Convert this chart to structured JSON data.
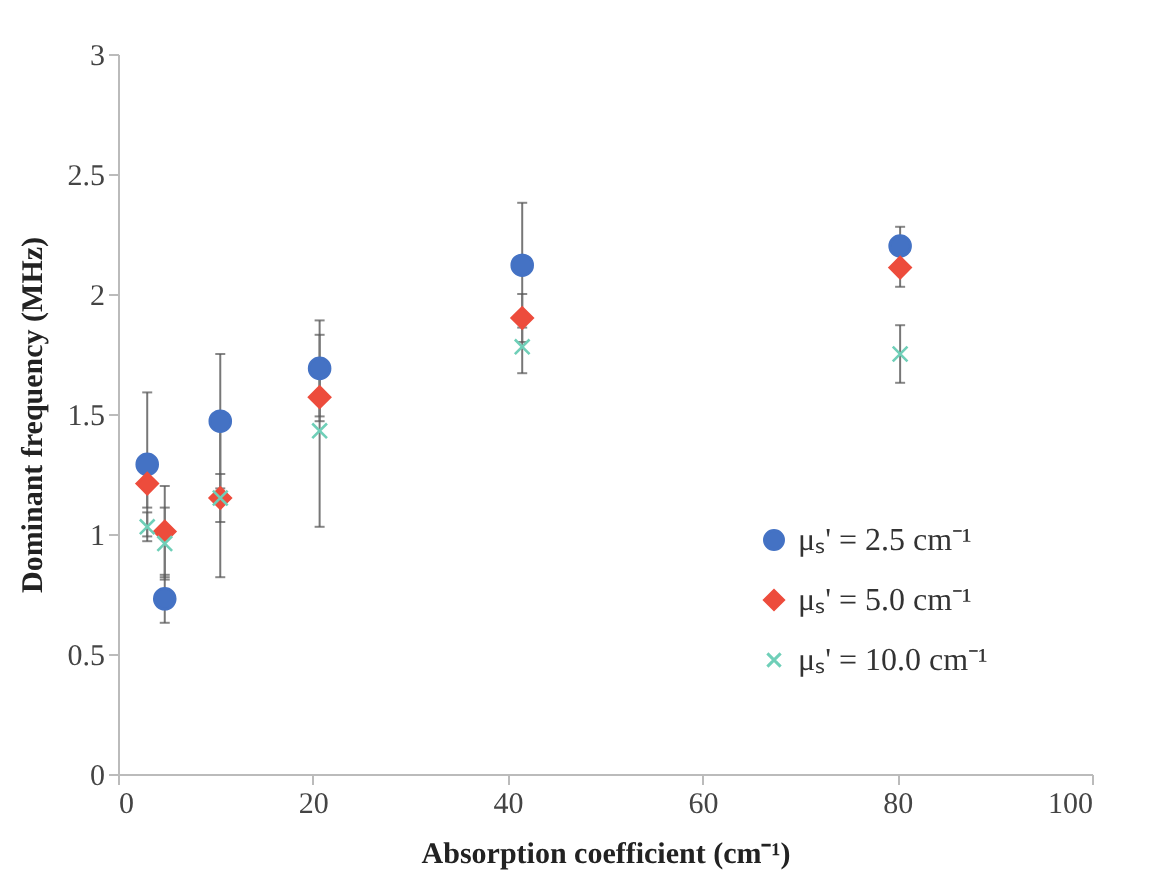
{
  "chart_data": {
    "type": "scatter",
    "xlabel": "Absorption coefficient (cm⁻¹)",
    "ylabel": "Dominant frequency (MHz)",
    "x": [
      3,
      4.8,
      10.5,
      20.7,
      41.5,
      80.3
    ],
    "series": [
      {
        "name": "μₛ' = 2.5 cm⁻¹",
        "color": "#4472c4",
        "marker": "circle",
        "values": [
          1.29,
          0.73,
          1.47,
          1.69,
          2.12,
          2.2
        ],
        "errors": [
          0.3,
          0.1,
          0.28,
          0.2,
          0.26,
          0.08
        ]
      },
      {
        "name": "μₛ' = 5.0 cm⁻¹",
        "color": "#ed4c3c",
        "marker": "diamond",
        "values": [
          1.21,
          1.01,
          1.15,
          1.57,
          1.9,
          2.11
        ],
        "errors": [
          0.1,
          0.19,
          0.1,
          0.1,
          0.1,
          0.08
        ]
      },
      {
        "name": "μₛ' = 10.0 cm⁻¹",
        "color": "#6fcfb8",
        "marker": "cross",
        "values": [
          1.03,
          0.96,
          1.15,
          1.43,
          1.78,
          1.75
        ],
        "errors": [
          0.06,
          0.15,
          0.33,
          0.4,
          0.11,
          0.12
        ]
      }
    ],
    "xlim": [
      0,
      100
    ],
    "xticks": [
      0,
      20,
      40,
      60,
      80,
      100
    ],
    "ylim": [
      0,
      3
    ],
    "yticks": [
      0,
      0.5,
      1,
      1.5,
      2,
      2.5,
      3
    ],
    "grid": false,
    "legend": "bottom right"
  }
}
